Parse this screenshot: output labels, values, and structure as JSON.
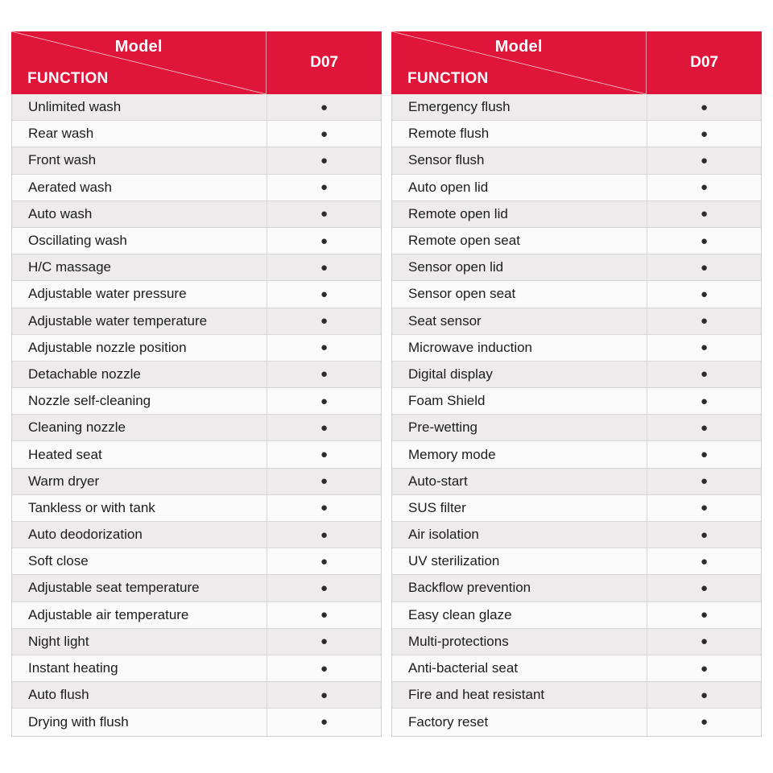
{
  "colors": {
    "header": "#e0153a",
    "row_odd": "#edebec",
    "row_even": "#fafafa",
    "dot": "#2b2b2b"
  },
  "dot_symbol": "●",
  "tables": [
    {
      "header": {
        "model_label": "Model",
        "function_label": "FUNCTION",
        "column_label": "D07"
      },
      "rows": [
        {
          "label": "Unlimited wash",
          "d07": "●"
        },
        {
          "label": "Rear wash",
          "d07": "●"
        },
        {
          "label": "Front wash",
          "d07": "●"
        },
        {
          "label": "Aerated wash",
          "d07": "●"
        },
        {
          "label": "Auto wash",
          "d07": "●"
        },
        {
          "label": "Oscillating wash",
          "d07": "●"
        },
        {
          "label": "H/C massage",
          "d07": "●"
        },
        {
          "label": "Adjustable water pressure",
          "d07": "●"
        },
        {
          "label": "Adjustable water temperature",
          "d07": "●"
        },
        {
          "label": "Adjustable nozzle position",
          "d07": "●"
        },
        {
          "label": "Detachable nozzle",
          "d07": "●"
        },
        {
          "label": "Nozzle self-cleaning",
          "d07": "●"
        },
        {
          "label": "Cleaning nozzle",
          "d07": "●"
        },
        {
          "label": "Heated seat",
          "d07": "●"
        },
        {
          "label": "Warm dryer",
          "d07": "●"
        },
        {
          "label": "Tankless or with tank",
          "d07": "●"
        },
        {
          "label": "Auto deodorization",
          "d07": "●"
        },
        {
          "label": "Soft close",
          "d07": "●"
        },
        {
          "label": "Adjustable seat temperature",
          "d07": "●"
        },
        {
          "label": "Adjustable air temperature",
          "d07": "●"
        },
        {
          "label": "Night light",
          "d07": "●"
        },
        {
          "label": "Instant heating",
          "d07": "●"
        },
        {
          "label": "Auto flush",
          "d07": "●"
        },
        {
          "label": "Drying with flush",
          "d07": "●"
        }
      ]
    },
    {
      "header": {
        "model_label": "Model",
        "function_label": "FUNCTION",
        "column_label": "D07"
      },
      "rows": [
        {
          "label": "Emergency flush",
          "d07": "●"
        },
        {
          "label": "Remote flush",
          "d07": "●"
        },
        {
          "label": "Sensor flush",
          "d07": "●"
        },
        {
          "label": "Auto open lid",
          "d07": "●"
        },
        {
          "label": "Remote open lid",
          "d07": "●"
        },
        {
          "label": "Remote open seat",
          "d07": "●"
        },
        {
          "label": "Sensor open lid",
          "d07": "●"
        },
        {
          "label": "Sensor open seat",
          "d07": "●"
        },
        {
          "label": "Seat sensor",
          "d07": "●"
        },
        {
          "label": "Microwave induction",
          "d07": "●"
        },
        {
          "label": "Digital display",
          "d07": "●"
        },
        {
          "label": "Foam Shield",
          "d07": "●"
        },
        {
          "label": "Pre-wetting",
          "d07": "●"
        },
        {
          "label": "Memory mode",
          "d07": "●"
        },
        {
          "label": "Auto-start",
          "d07": "●"
        },
        {
          "label": "SUS filter",
          "d07": "●"
        },
        {
          "label": "Air isolation",
          "d07": "●"
        },
        {
          "label": "UV sterilization",
          "d07": "●"
        },
        {
          "label": "Backflow prevention",
          "d07": "●"
        },
        {
          "label": "Easy clean glaze",
          "d07": "●"
        },
        {
          "label": "Multi-protections",
          "d07": "●"
        },
        {
          "label": "Anti-bacterial seat",
          "d07": "●"
        },
        {
          "label": "Fire and heat resistant",
          "d07": "●"
        },
        {
          "label": "Factory reset",
          "d07": "●"
        }
      ]
    }
  ]
}
